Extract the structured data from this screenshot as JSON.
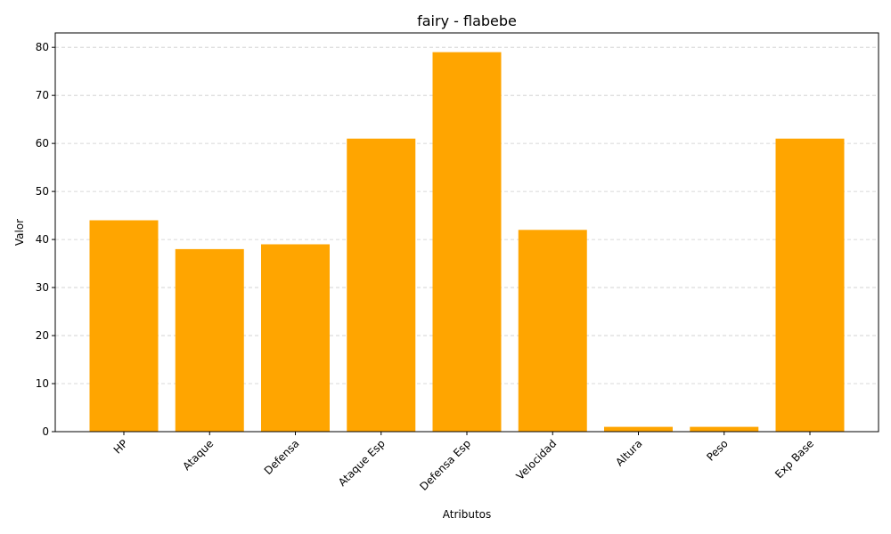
{
  "chart_data": {
    "type": "bar",
    "title": "fairy - flabebe",
    "xlabel": "Atributos",
    "ylabel": "Valor",
    "categories": [
      "HP",
      "Ataque",
      "Defensa",
      "Ataque Esp",
      "Defensa Esp",
      "Velocidad",
      "Altura",
      "Peso",
      "Exp Base"
    ],
    "values": [
      44,
      38,
      39,
      61,
      79,
      42,
      1,
      1,
      61
    ],
    "ylim": [
      0,
      83
    ],
    "yticks": [
      0,
      10,
      20,
      30,
      40,
      50,
      60,
      70,
      80
    ],
    "grid": "y-dashed",
    "bar_color": "#ffa500",
    "x_tick_rotation": 45
  }
}
